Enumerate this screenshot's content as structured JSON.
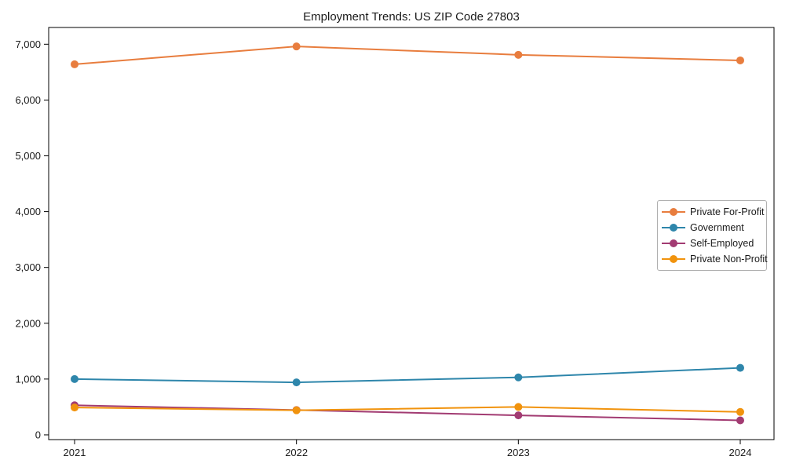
{
  "figure": {
    "background": "#ffffff",
    "axis_color": "#000000",
    "text_color": "#1a1a1a",
    "legend_border_color": "#b0b0b0"
  },
  "chart_data": {
    "type": "line",
    "title": "Employment Trends: US ZIP Code 27803",
    "categories": [
      "2021",
      "2022",
      "2023",
      "2024"
    ],
    "series": [
      {
        "name": "Private For-Profit",
        "color": "#e87d3e",
        "values": [
          6640,
          6960,
          6810,
          6710
        ]
      },
      {
        "name": "Government",
        "color": "#2e86ab",
        "values": [
          1000,
          940,
          1030,
          1200
        ]
      },
      {
        "name": "Self-Employed",
        "color": "#a23b72",
        "values": [
          530,
          445,
          350,
          260
        ]
      },
      {
        "name": "Private Non-Profit",
        "color": "#f1930d",
        "values": [
          490,
          440,
          500,
          410
        ]
      }
    ],
    "xlabel": "",
    "ylabel": "",
    "ylim": [
      -85,
      7300
    ],
    "yticks": [
      0,
      1000,
      2000,
      3000,
      4000,
      5000,
      6000,
      7000
    ],
    "ytick_format": "comma",
    "grid": false,
    "legend_position": "center-right",
    "marker": "circle"
  }
}
